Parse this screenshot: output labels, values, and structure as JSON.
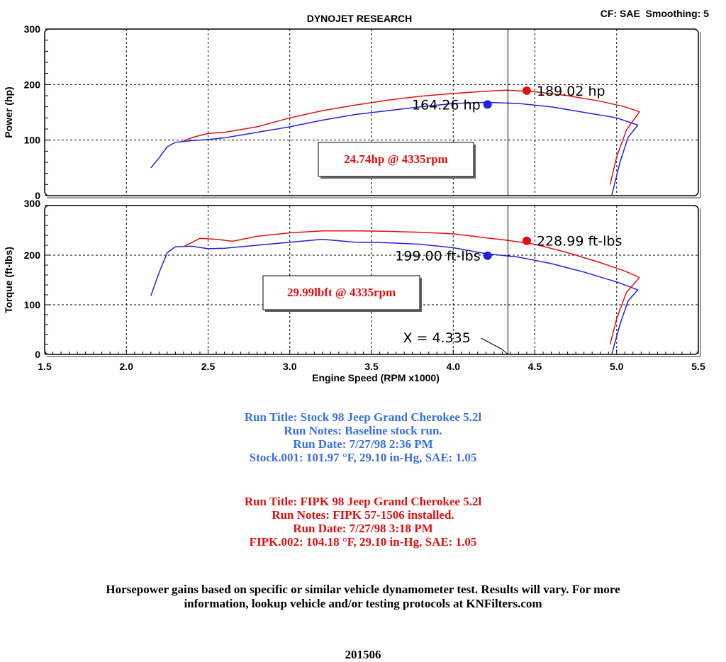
{
  "header": {
    "title": "DYNOJET RESEARCH",
    "correction": "CF: SAE  Smoothing: 5"
  },
  "colors": {
    "stock": "#2222dd",
    "fipk": "#e01010",
    "stock_text": "#3a6fdc",
    "fipk_text": "#e01010"
  },
  "chart_data": [
    {
      "type": "line",
      "name": "power",
      "ylabel": "Power (hp)",
      "xlim": [
        1.5,
        5.5
      ],
      "ylim": [
        0,
        300
      ],
      "yticks": [
        "0",
        "100",
        "200",
        "300"
      ],
      "grid": true,
      "cursor_x": 4.335,
      "series": [
        {
          "name": "Stock.001",
          "color": "#2222dd",
          "points": [
            [
              2.15,
              50
            ],
            [
              2.2,
              68
            ],
            [
              2.25,
              88
            ],
            [
              2.3,
              96
            ],
            [
              2.4,
              99
            ],
            [
              2.5,
              101
            ],
            [
              2.6,
              104
            ],
            [
              2.8,
              114
            ],
            [
              3.0,
              124
            ],
            [
              3.2,
              136
            ],
            [
              3.4,
              146
            ],
            [
              3.6,
              153
            ],
            [
              3.8,
              160
            ],
            [
              4.0,
              166
            ],
            [
              4.2,
              168
            ],
            [
              4.4,
              166
            ],
            [
              4.6,
              160
            ],
            [
              4.8,
              150
            ],
            [
              5.0,
              140
            ],
            [
              5.13,
              127
            ]
          ],
          "rundown": [
            [
              4.97,
              0
            ],
            [
              5.02,
              60
            ],
            [
              5.07,
              105
            ],
            [
              5.13,
              127
            ]
          ],
          "marker": {
            "x": 4.21,
            "y": 164.26,
            "label": "164.26 hp"
          }
        },
        {
          "name": "FIPK.002",
          "color": "#e01010",
          "points": [
            [
              2.35,
              99
            ],
            [
              2.42,
              106
            ],
            [
              2.5,
              112
            ],
            [
              2.6,
              114
            ],
            [
              2.8,
              124
            ],
            [
              3.0,
              140
            ],
            [
              3.2,
              153
            ],
            [
              3.4,
              163
            ],
            [
              3.6,
              172
            ],
            [
              3.8,
              179
            ],
            [
              4.0,
              184
            ],
            [
              4.2,
              188
            ],
            [
              4.33,
              190
            ],
            [
              4.5,
              187
            ],
            [
              4.7,
              180
            ],
            [
              4.9,
              170
            ],
            [
              5.05,
              160
            ],
            [
              5.14,
              151
            ]
          ],
          "rundown": [
            [
              4.96,
              20
            ],
            [
              5.0,
              70
            ],
            [
              5.06,
              118
            ],
            [
              5.14,
              151
            ]
          ],
          "marker": {
            "x": 4.45,
            "y": 189.02,
            "label": "189.02 hp"
          }
        }
      ],
      "annotation": "24.74hp @ 4335rpm"
    },
    {
      "type": "line",
      "name": "torque",
      "ylabel": "Torque (ft-lbs)",
      "xlabel": "Engine Speed (RPM x1000)",
      "xlim": [
        1.5,
        5.5
      ],
      "ylim": [
        0,
        300
      ],
      "xticks": [
        "1.5",
        "2.0",
        "2.5",
        "3.0",
        "3.5",
        "4.0",
        "4.5",
        "5.0",
        "5.5"
      ],
      "yticks": [
        "0",
        "100",
        "200",
        "300"
      ],
      "grid": true,
      "cursor_x": 4.335,
      "cursor_label": "X = 4.335",
      "series": [
        {
          "name": "Stock.001",
          "color": "#2222dd",
          "points": [
            [
              2.15,
              118
            ],
            [
              2.2,
              165
            ],
            [
              2.25,
              205
            ],
            [
              2.3,
              217
            ],
            [
              2.4,
              218
            ],
            [
              2.5,
              213
            ],
            [
              2.6,
              214
            ],
            [
              2.8,
              220
            ],
            [
              3.0,
              226
            ],
            [
              3.2,
              232
            ],
            [
              3.4,
              226
            ],
            [
              3.6,
              225
            ],
            [
              3.8,
              222
            ],
            [
              4.0,
              215
            ],
            [
              4.2,
              203
            ],
            [
              4.4,
              196
            ],
            [
              4.6,
              183
            ],
            [
              4.8,
              166
            ],
            [
              5.0,
              146
            ],
            [
              5.13,
              130
            ]
          ],
          "rundown": [
            [
              4.97,
              0
            ],
            [
              5.02,
              60
            ],
            [
              5.07,
              108
            ],
            [
              5.13,
              130
            ]
          ],
          "marker": {
            "x": 4.21,
            "y": 199.0,
            "label": "199.00 ft-lbs"
          }
        },
        {
          "name": "FIPK.002",
          "color": "#e01010",
          "points": [
            [
              2.35,
              217
            ],
            [
              2.45,
              234
            ],
            [
              2.55,
              232
            ],
            [
              2.65,
              228
            ],
            [
              2.8,
              238
            ],
            [
              3.0,
              245
            ],
            [
              3.2,
              249
            ],
            [
              3.4,
              249
            ],
            [
              3.6,
              248
            ],
            [
              3.8,
              246
            ],
            [
              4.0,
              243
            ],
            [
              4.2,
              235
            ],
            [
              4.33,
              230
            ],
            [
              4.5,
              222
            ],
            [
              4.7,
              205
            ],
            [
              4.9,
              185
            ],
            [
              5.05,
              168
            ],
            [
              5.14,
              155
            ]
          ],
          "rundown": [
            [
              4.96,
              20
            ],
            [
              5.0,
              72
            ],
            [
              5.06,
              125
            ],
            [
              5.14,
              155
            ]
          ],
          "marker": {
            "x": 4.45,
            "y": 228.99,
            "label": "228.99 ft-lbs"
          }
        }
      ],
      "annotation": "29.99lbft @ 4335rpm"
    }
  ],
  "stock_run": {
    "title": "Run Title: Stock 98 Jeep Grand Cherokee 5.2l",
    "notes": "Run Notes: Baseline stock run.",
    "date": "Run Date: 7/27/98 2:36 PM",
    "conditions": "Stock.001: 101.97 °F, 29.10 in-Hg, SAE: 1.05"
  },
  "fipk_run": {
    "title": "Run Title: FIPK 98 Jeep Grand Cherokee 5.2l",
    "notes": "Run Notes: FIPK 57-1506 installed.",
    "date": "Run Date: 7/27/98 3:18 PM",
    "conditions": "FIPK.002: 104.18 °F, 29.10 in-Hg, SAE: 1.05"
  },
  "disclaimer": {
    "line1": "Horsepower gains based on specific or similar vehicle dynamometer test. Results will vary. For more",
    "line2": "information, lookup vehicle and/or testing protocols at KNFilters.com"
  },
  "reference_number": "201506"
}
